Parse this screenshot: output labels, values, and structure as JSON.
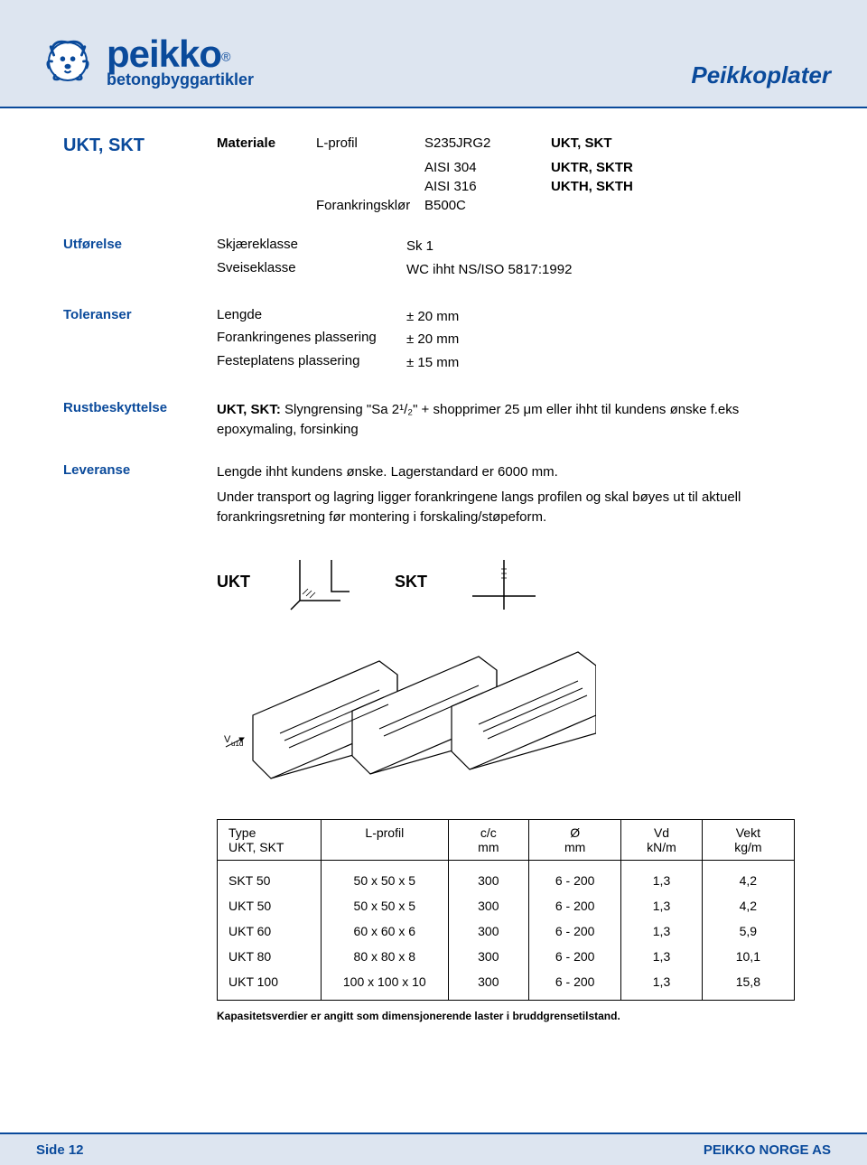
{
  "header": {
    "brand": "peikko",
    "registered": "®",
    "tagline": "betongbyggartikler",
    "doc_title": "Peikkoplater",
    "brand_color": "#0a4a9b",
    "header_bg": "#dde5f0"
  },
  "title": "UKT, SKT",
  "materiale": {
    "label": "Materiale",
    "rows": [
      {
        "k": "L-profil",
        "v": "S235JRG2",
        "r": "UKT, SKT"
      },
      {
        "k": "",
        "v": "AISI 304",
        "r": "UKTR, SKTR"
      },
      {
        "k": "",
        "v": "AISI 316",
        "r": "UKTH, SKTH"
      },
      {
        "k": "Forankringsklør",
        "v": "B500C",
        "r": ""
      }
    ]
  },
  "utforelse": {
    "label": "Utførelse",
    "rows": [
      {
        "k": "Skjæreklasse",
        "v": "Sk 1"
      },
      {
        "k": "Sveiseklasse",
        "v": "WC ihht NS/ISO 5817:1992"
      }
    ]
  },
  "toleranser": {
    "label": "Toleranser",
    "rows": [
      {
        "k": "Lengde",
        "v": "± 20 mm"
      },
      {
        "k": "Forankringenes plassering",
        "v": "± 20 mm"
      },
      {
        "k": "Festeplatens plassering",
        "v": "± 15 mm"
      }
    ]
  },
  "rust": {
    "label": "Rustbeskyttelse",
    "prefix": "UKT, SKT:",
    "text": " Slyngrensing \"Sa 2¹/₂\" + shopprimer 25 μm eller ihht til kundens ønske f.eks epoxymaling, forsinking"
  },
  "leveranse": {
    "label": "Leveranse",
    "line1": "Lengde ihht kundens ønske. Lagerstandard er 6000 mm.",
    "line2": "Under transport og lagring ligger forankringene langs profilen og skal bøyes ut til aktuell forankringsretning før montering i forskaling/støpeform."
  },
  "diagrams": {
    "left": "UKT",
    "right": "SKT"
  },
  "table": {
    "headers": [
      {
        "l1": "Type",
        "l2": "UKT, SKT"
      },
      {
        "l1": "L-profil",
        "l2": ""
      },
      {
        "l1": "c/c",
        "l2": "mm"
      },
      {
        "l1": "Ø",
        "l2": "mm"
      },
      {
        "l1": "Vd",
        "l2": "kN/m"
      },
      {
        "l1": "Vekt",
        "l2": "kg/m"
      }
    ],
    "rows": [
      [
        "SKT 50",
        "50 x 50 x 5",
        "300",
        "6 - 200",
        "1,3",
        "4,2"
      ],
      [
        "UKT 50",
        "50 x 50 x 5",
        "300",
        "6 - 200",
        "1,3",
        "4,2"
      ],
      [
        "UKT 60",
        "60 x 60 x 6",
        "300",
        "6 - 200",
        "1,3",
        "5,9"
      ],
      [
        "UKT 80",
        "80 x 80 x 8",
        "300",
        "6 - 200",
        "1,3",
        "10,1"
      ],
      [
        "UKT 100",
        "100 x 100 x 10",
        "300",
        "6 - 200",
        "1,3",
        "15,8"
      ]
    ],
    "note": "Kapasitetsverdier er angitt som dimensjonerende laster i bruddgrensetilstand.",
    "col_widths": [
      "18%",
      "22%",
      "14%",
      "16%",
      "14%",
      "16%"
    ]
  },
  "footer": {
    "page": "Side 12",
    "company": "PEIKKO NORGE AS"
  }
}
